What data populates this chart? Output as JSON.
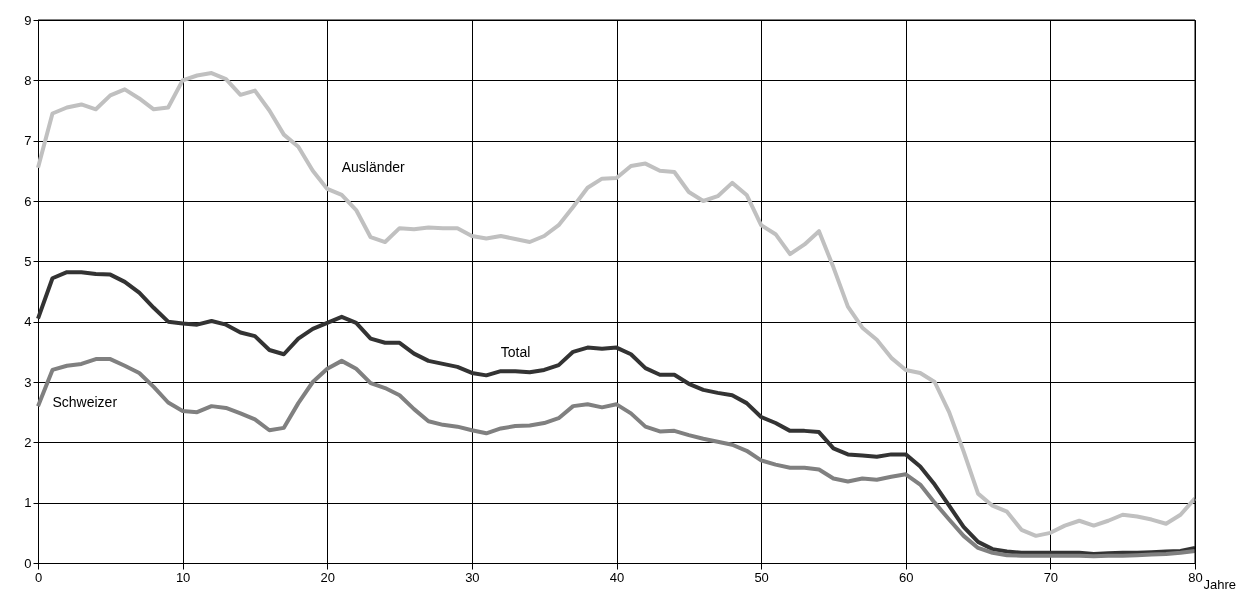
{
  "chart_data": {
    "type": "line",
    "xlabel": "Jahre",
    "x": [
      0,
      1,
      2,
      3,
      4,
      5,
      6,
      7,
      8,
      9,
      10,
      11,
      12,
      13,
      14,
      15,
      16,
      17,
      18,
      19,
      20,
      21,
      22,
      23,
      24,
      25,
      26,
      27,
      28,
      29,
      30,
      31,
      32,
      33,
      34,
      35,
      36,
      37,
      38,
      39,
      40,
      41,
      42,
      43,
      44,
      45,
      46,
      47,
      48,
      49,
      50,
      51,
      52,
      53,
      54,
      55,
      56,
      57,
      58,
      59,
      60,
      61,
      62,
      63,
      64,
      65,
      66,
      67,
      68,
      69,
      70,
      71,
      72,
      73,
      74,
      75,
      76,
      77,
      78,
      79,
      80
    ],
    "series": [
      {
        "name": "Ausländer",
        "color": "#c0c0c0",
        "values": [
          6.55,
          7.45,
          7.55,
          7.6,
          7.52,
          7.75,
          7.85,
          7.7,
          7.52,
          7.55,
          8.0,
          8.08,
          8.12,
          8.02,
          7.76,
          7.83,
          7.5,
          7.1,
          6.9,
          6.5,
          6.2,
          6.1,
          5.85,
          5.4,
          5.32,
          5.55,
          5.53,
          5.56,
          5.55,
          5.55,
          5.42,
          5.38,
          5.42,
          5.37,
          5.32,
          5.42,
          5.6,
          5.9,
          6.22,
          6.37,
          6.38,
          6.58,
          6.62,
          6.5,
          6.48,
          6.15,
          6.0,
          6.08,
          6.3,
          6.1,
          5.6,
          5.45,
          5.12,
          5.28,
          5.5,
          4.9,
          4.25,
          3.9,
          3.7,
          3.4,
          3.2,
          3.15,
          3.0,
          2.5,
          1.85,
          1.15,
          0.95,
          0.85,
          0.55,
          0.45,
          0.5,
          0.62,
          0.7,
          0.62,
          0.7,
          0.8,
          0.77,
          0.72,
          0.65,
          0.8,
          1.07
        ]
      },
      {
        "name": "Total",
        "color": "#333333",
        "values": [
          4.05,
          4.72,
          4.82,
          4.82,
          4.79,
          4.78,
          4.66,
          4.48,
          4.23,
          4.0,
          3.97,
          3.95,
          4.01,
          3.95,
          3.82,
          3.76,
          3.53,
          3.46,
          3.72,
          3.88,
          3.98,
          4.08,
          3.98,
          3.72,
          3.65,
          3.65,
          3.47,
          3.35,
          3.3,
          3.25,
          3.15,
          3.11,
          3.18,
          3.18,
          3.16,
          3.2,
          3.28,
          3.5,
          3.57,
          3.55,
          3.57,
          3.46,
          3.23,
          3.12,
          3.12,
          2.97,
          2.87,
          2.82,
          2.78,
          2.65,
          2.42,
          2.32,
          2.19,
          2.19,
          2.17,
          1.9,
          1.8,
          1.78,
          1.76,
          1.8,
          1.8,
          1.6,
          1.3,
          0.95,
          0.6,
          0.35,
          0.23,
          0.19,
          0.17,
          0.17,
          0.17,
          0.17,
          0.17,
          0.15,
          0.16,
          0.17,
          0.17,
          0.18,
          0.19,
          0.2,
          0.25
        ]
      },
      {
        "name": "Schweizer",
        "color": "#808080",
        "values": [
          2.6,
          3.2,
          3.27,
          3.3,
          3.38,
          3.38,
          3.27,
          3.15,
          2.92,
          2.66,
          2.52,
          2.5,
          2.6,
          2.57,
          2.48,
          2.38,
          2.2,
          2.24,
          2.65,
          3.0,
          3.22,
          3.35,
          3.22,
          2.98,
          2.9,
          2.78,
          2.55,
          2.35,
          2.29,
          2.26,
          2.2,
          2.15,
          2.23,
          2.27,
          2.28,
          2.32,
          2.4,
          2.6,
          2.63,
          2.58,
          2.63,
          2.48,
          2.26,
          2.18,
          2.19,
          2.12,
          2.06,
          2.01,
          1.96,
          1.86,
          1.7,
          1.63,
          1.58,
          1.58,
          1.55,
          1.4,
          1.35,
          1.4,
          1.38,
          1.43,
          1.47,
          1.3,
          1.0,
          0.72,
          0.45,
          0.25,
          0.17,
          0.13,
          0.12,
          0.12,
          0.12,
          0.12,
          0.12,
          0.11,
          0.12,
          0.12,
          0.13,
          0.14,
          0.15,
          0.17,
          0.2
        ]
      }
    ],
    "xlim": [
      0,
      80
    ],
    "xticks": [
      0,
      10,
      20,
      30,
      40,
      50,
      60,
      70,
      80
    ],
    "ylim": [
      0,
      9
    ],
    "yticks": [
      0,
      1,
      2,
      3,
      4,
      5,
      6,
      7,
      8,
      9
    ],
    "grid": true,
    "marker": "none",
    "line_style": "solid"
  }
}
